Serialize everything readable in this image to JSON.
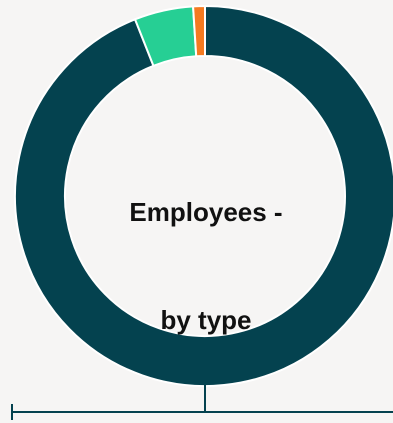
{
  "chart_data": {
    "type": "donut",
    "title": "Employees - by type",
    "title_lines": [
      "Employees -",
      "by type"
    ],
    "series": [
      {
        "value": 94,
        "color": "#04424f"
      },
      {
        "value": 5,
        "color": "#26cf94"
      },
      {
        "value": 1,
        "color": "#f47a20"
      }
    ],
    "start_angle_deg": 0,
    "legend": "none"
  },
  "colors": {
    "background": "#f6f5f4",
    "separator": "#ffffff",
    "leader_line": "#04424f"
  }
}
